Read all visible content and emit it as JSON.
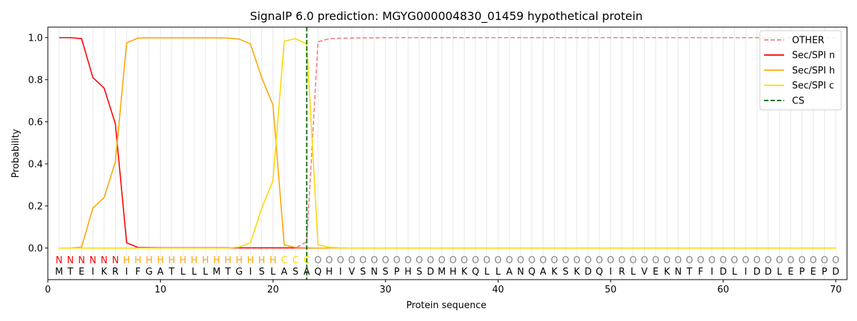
{
  "chart_data": {
    "type": "line",
    "title": "SignalP 6.0 prediction: MGYG000004830_01459 hypothetical protein",
    "xlabel": "Protein sequence",
    "ylabel": "Probability",
    "xlim": [
      0,
      71
    ],
    "ylim": [
      -0.15,
      1.05
    ],
    "xticks": [
      0,
      10,
      20,
      30,
      40,
      50,
      60,
      70
    ],
    "yticks": [
      0.0,
      0.2,
      0.4,
      0.6,
      0.8,
      1.0
    ],
    "ytick_labels": [
      "0.0",
      "0.2",
      "0.4",
      "0.6",
      "0.8",
      "1.0"
    ],
    "grid": "vertical lines at each residue",
    "legend_position": "top-right",
    "sequence": [
      "M",
      "T",
      "E",
      "I",
      "K",
      "R",
      "I",
      "F",
      "G",
      "A",
      "T",
      "L",
      "L",
      "L",
      "M",
      "T",
      "G",
      "I",
      "S",
      "L",
      "A",
      "S",
      "A",
      "Q",
      "H",
      "I",
      "V",
      "S",
      "N",
      "S",
      "P",
      "H",
      "S",
      "D",
      "M",
      "H",
      "K",
      "Q",
      "L",
      "L",
      "A",
      "N",
      "Q",
      "A",
      "K",
      "S",
      "K",
      "D",
      "Q",
      "I",
      "R",
      "L",
      "V",
      "E",
      "K",
      "N",
      "T",
      "F",
      "I",
      "D",
      "L",
      "I",
      "D",
      "D",
      "L",
      "E",
      "P",
      "E",
      "P",
      "D"
    ],
    "region_labels": [
      "N",
      "N",
      "N",
      "N",
      "N",
      "N",
      "H",
      "H",
      "H",
      "H",
      "H",
      "H",
      "H",
      "H",
      "H",
      "H",
      "H",
      "H",
      "H",
      "H",
      "C",
      "C",
      "C",
      "O",
      "O",
      "O",
      "O",
      "O",
      "O",
      "O",
      "O",
      "O",
      "O",
      "O",
      "O",
      "O",
      "O",
      "O",
      "O",
      "O",
      "O",
      "O",
      "O",
      "O",
      "O",
      "O",
      "O",
      "O",
      "O",
      "O",
      "O",
      "O",
      "O",
      "O",
      "O",
      "O",
      "O",
      "O",
      "O",
      "O",
      "O",
      "O",
      "O",
      "O",
      "O",
      "O",
      "O",
      "O",
      "O",
      "O"
    ],
    "region_colors": {
      "N": "#ff0000",
      "H": "#ffa500",
      "C": "#ffd700",
      "O": "#808080"
    },
    "cs_position": 23,
    "series": [
      {
        "name": "OTHER",
        "color": "#f08080",
        "dash": "dashed",
        "values": [
          0.0,
          0.0,
          0.0,
          0.0,
          0.0,
          0.0,
          0.0,
          0.0,
          0.0,
          0.0,
          0.0,
          0.0,
          0.0,
          0.0,
          0.0,
          0.0,
          0.0,
          0.0,
          0.0,
          0.0,
          0.0,
          0.0,
          0.03,
          0.98,
          0.995,
          0.997,
          0.998,
          0.999,
          0.999,
          1.0,
          1.0,
          1.0,
          1.0,
          1.0,
          1.0,
          1.0,
          1.0,
          1.0,
          1.0,
          1.0,
          1.0,
          1.0,
          1.0,
          1.0,
          1.0,
          1.0,
          1.0,
          1.0,
          1.0,
          1.0,
          1.0,
          1.0,
          1.0,
          1.0,
          1.0,
          1.0,
          1.0,
          1.0,
          1.0,
          1.0,
          1.0,
          1.0,
          1.0,
          1.0,
          1.0,
          1.0,
          1.0,
          1.0,
          1.0,
          1.0
        ]
      },
      {
        "name": "Sec/SPI n",
        "color": "#ff0000",
        "dash": "solid",
        "values": [
          1.0,
          1.0,
          0.995,
          0.81,
          0.76,
          0.59,
          0.025,
          0.003,
          0.002,
          0.001,
          0.001,
          0.001,
          0.001,
          0.001,
          0.001,
          0.001,
          0.001,
          0.001,
          0.001,
          0.001,
          0.001,
          0.001,
          0.0,
          0.0,
          0.0,
          0.0,
          0.0,
          0.0,
          0.0,
          0.0,
          0.0,
          0.0,
          0.0,
          0.0,
          0.0,
          0.0,
          0.0,
          0.0,
          0.0,
          0.0,
          0.0,
          0.0,
          0.0,
          0.0,
          0.0,
          0.0,
          0.0,
          0.0,
          0.0,
          0.0,
          0.0,
          0.0,
          0.0,
          0.0,
          0.0,
          0.0,
          0.0,
          0.0,
          0.0,
          0.0,
          0.0,
          0.0,
          0.0,
          0.0,
          0.0,
          0.0,
          0.0,
          0.0,
          0.0,
          0.0
        ]
      },
      {
        "name": "Sec/SPI h",
        "color": "#ffa500",
        "dash": "solid",
        "values": [
          0.0,
          0.0,
          0.005,
          0.19,
          0.24,
          0.41,
          0.975,
          0.998,
          0.999,
          0.999,
          0.999,
          0.999,
          0.999,
          0.999,
          0.999,
          0.998,
          0.993,
          0.97,
          0.81,
          0.68,
          0.015,
          0.003,
          0.001,
          0.0,
          0.0,
          0.0,
          0.0,
          0.0,
          0.0,
          0.0,
          0.0,
          0.0,
          0.0,
          0.0,
          0.0,
          0.0,
          0.0,
          0.0,
          0.0,
          0.0,
          0.0,
          0.0,
          0.0,
          0.0,
          0.0,
          0.0,
          0.0,
          0.0,
          0.0,
          0.0,
          0.0,
          0.0,
          0.0,
          0.0,
          0.0,
          0.0,
          0.0,
          0.0,
          0.0,
          0.0,
          0.0,
          0.0,
          0.0,
          0.0,
          0.0,
          0.0,
          0.0,
          0.0,
          0.0,
          0.0
        ]
      },
      {
        "name": "Sec/SPI c",
        "color": "#ffd700",
        "dash": "solid",
        "values": [
          0.0,
          0.0,
          0.0,
          0.0,
          0.0,
          0.0,
          0.0,
          0.0,
          0.0,
          0.0,
          0.0,
          0.0,
          0.0,
          0.0,
          0.0,
          0.0,
          0.005,
          0.025,
          0.19,
          0.32,
          0.983,
          0.995,
          0.97,
          0.015,
          0.004,
          0.001,
          0.0,
          0.0,
          0.0,
          0.0,
          0.0,
          0.0,
          0.0,
          0.0,
          0.0,
          0.0,
          0.0,
          0.0,
          0.0,
          0.0,
          0.0,
          0.0,
          0.0,
          0.0,
          0.0,
          0.0,
          0.0,
          0.0,
          0.0,
          0.0,
          0.0,
          0.0,
          0.0,
          0.0,
          0.0,
          0.0,
          0.0,
          0.0,
          0.0,
          0.0,
          0.0,
          0.0,
          0.0,
          0.0,
          0.0,
          0.0,
          0.0,
          0.0,
          0.0,
          0.0
        ]
      }
    ],
    "legend": [
      {
        "label": "OTHER",
        "color": "#f08080",
        "dash": "dashed"
      },
      {
        "label": "Sec/SPI n",
        "color": "#ff0000",
        "dash": "solid"
      },
      {
        "label": "Sec/SPI h",
        "color": "#ffa500",
        "dash": "solid"
      },
      {
        "label": "Sec/SPI c",
        "color": "#ffd700",
        "dash": "solid"
      },
      {
        "label": "CS",
        "color": "#006400",
        "dash": "dashed"
      }
    ]
  }
}
